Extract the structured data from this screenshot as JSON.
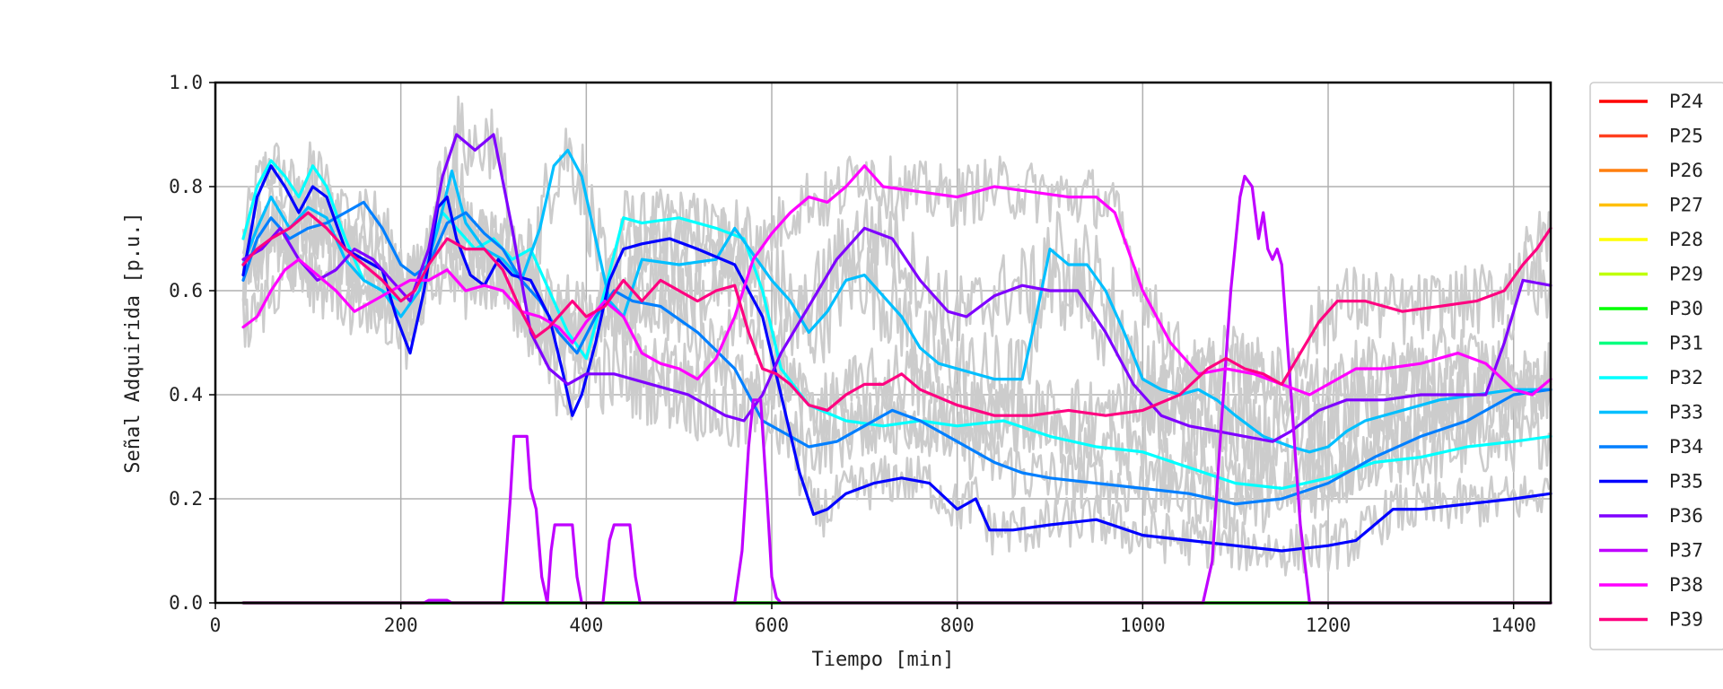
{
  "chart_data": {
    "type": "line",
    "title": "",
    "xlabel": "Tiempo [min]",
    "ylabel": "Señal Adquirida [p.u.]",
    "xlim": [
      0,
      1440
    ],
    "ylim": [
      0,
      1.0
    ],
    "xticks": [
      0,
      200,
      400,
      600,
      800,
      1000,
      1200,
      1400
    ],
    "yticks": [
      0.0,
      0.2,
      0.4,
      0.6,
      0.8,
      1.0
    ],
    "xtick_labels": [
      "0",
      "200",
      "400",
      "600",
      "800",
      "1000",
      "1200",
      "1400"
    ],
    "ytick_labels": [
      "0.0",
      "0.2",
      "0.4",
      "0.6",
      "0.8",
      "1.0"
    ],
    "grid": true,
    "legend_position": "outside-right",
    "raw_signal_color": "#cccccc",
    "series": [
      {
        "name": "P24",
        "color": "#ff0000",
        "x": [
          30,
          1440
        ],
        "y": [
          0,
          0
        ]
      },
      {
        "name": "P25",
        "color": "#ff3f1f",
        "x": [
          30,
          1440
        ],
        "y": [
          0,
          0
        ]
      },
      {
        "name": "P26",
        "color": "#ff7f0e",
        "x": [
          30,
          1440
        ],
        "y": [
          0,
          0
        ]
      },
      {
        "name": "P27",
        "color": "#ffbf00",
        "x": [
          30,
          1440
        ],
        "y": [
          0,
          0
        ]
      },
      {
        "name": "P28",
        "color": "#ffff00",
        "x": [
          30,
          1440
        ],
        "y": [
          0,
          0
        ]
      },
      {
        "name": "P29",
        "color": "#bfff00",
        "x": [
          30,
          1440
        ],
        "y": [
          0,
          0
        ]
      },
      {
        "name": "P30",
        "color": "#00ff00",
        "x": [
          30,
          1440
        ],
        "y": [
          0,
          0
        ]
      },
      {
        "name": "P31",
        "color": "#00ff7f",
        "x": [
          30,
          1440
        ],
        "y": [
          0,
          0
        ]
      },
      {
        "name": "P32",
        "color": "#00ffff",
        "x": [
          30,
          45,
          60,
          75,
          90,
          105,
          120,
          140,
          160,
          180,
          200,
          215,
          230,
          245,
          260,
          280,
          300,
          320,
          340,
          360,
          380,
          400,
          420,
          440,
          460,
          500,
          540,
          570,
          590,
          610,
          640,
          680,
          720,
          760,
          800,
          850,
          900,
          950,
          1000,
          1050,
          1100,
          1150,
          1200,
          1250,
          1300,
          1350,
          1400,
          1440
        ],
        "y": [
          0.7,
          0.8,
          0.85,
          0.82,
          0.78,
          0.84,
          0.8,
          0.7,
          0.62,
          0.6,
          0.58,
          0.6,
          0.68,
          0.75,
          0.72,
          0.68,
          0.7,
          0.66,
          0.68,
          0.6,
          0.52,
          0.47,
          0.6,
          0.74,
          0.73,
          0.74,
          0.72,
          0.7,
          0.6,
          0.45,
          0.38,
          0.35,
          0.34,
          0.35,
          0.34,
          0.35,
          0.32,
          0.3,
          0.29,
          0.26,
          0.23,
          0.22,
          0.24,
          0.27,
          0.28,
          0.3,
          0.31,
          0.32
        ]
      },
      {
        "name": "P33",
        "color": "#00bfff",
        "x": [
          30,
          45,
          60,
          80,
          100,
          120,
          140,
          160,
          180,
          200,
          220,
          240,
          255,
          270,
          290,
          310,
          330,
          350,
          365,
          380,
          395,
          410,
          425,
          440,
          460,
          500,
          540,
          560,
          580,
          600,
          620,
          640,
          660,
          680,
          700,
          720,
          740,
          760,
          780,
          800,
          840,
          870,
          885,
          900,
          920,
          940,
          960,
          980,
          1000,
          1020,
          1040,
          1060,
          1080,
          1100,
          1130,
          1160,
          1180,
          1200,
          1220,
          1240,
          1280,
          1320,
          1360,
          1400,
          1440
        ],
        "y": [
          0.65,
          0.72,
          0.78,
          0.72,
          0.76,
          0.74,
          0.66,
          0.62,
          0.6,
          0.55,
          0.6,
          0.72,
          0.83,
          0.73,
          0.68,
          0.66,
          0.62,
          0.72,
          0.84,
          0.87,
          0.82,
          0.7,
          0.58,
          0.55,
          0.66,
          0.65,
          0.66,
          0.72,
          0.67,
          0.62,
          0.58,
          0.52,
          0.56,
          0.62,
          0.63,
          0.59,
          0.55,
          0.49,
          0.46,
          0.45,
          0.43,
          0.43,
          0.55,
          0.68,
          0.65,
          0.65,
          0.6,
          0.52,
          0.43,
          0.41,
          0.4,
          0.41,
          0.39,
          0.36,
          0.32,
          0.3,
          0.29,
          0.3,
          0.33,
          0.35,
          0.37,
          0.39,
          0.4,
          0.41,
          0.41
        ]
      },
      {
        "name": "P34",
        "color": "#007fff",
        "x": [
          30,
          45,
          60,
          80,
          100,
          120,
          140,
          160,
          180,
          200,
          215,
          230,
          250,
          270,
          290,
          310,
          330,
          350,
          370,
          390,
          410,
          430,
          450,
          480,
          520,
          560,
          590,
          620,
          640,
          670,
          700,
          730,
          760,
          800,
          840,
          870,
          900,
          950,
          1000,
          1050,
          1100,
          1150,
          1200,
          1250,
          1300,
          1350,
          1400,
          1440
        ],
        "y": [
          0.62,
          0.7,
          0.74,
          0.7,
          0.72,
          0.73,
          0.75,
          0.77,
          0.72,
          0.65,
          0.63,
          0.65,
          0.73,
          0.75,
          0.71,
          0.68,
          0.62,
          0.58,
          0.52,
          0.48,
          0.55,
          0.6,
          0.58,
          0.57,
          0.52,
          0.45,
          0.35,
          0.32,
          0.3,
          0.31,
          0.34,
          0.37,
          0.35,
          0.31,
          0.27,
          0.25,
          0.24,
          0.23,
          0.22,
          0.21,
          0.19,
          0.2,
          0.23,
          0.28,
          0.32,
          0.35,
          0.4,
          0.41
        ]
      },
      {
        "name": "P35",
        "color": "#0000ff",
        "x": [
          30,
          45,
          60,
          75,
          90,
          105,
          120,
          140,
          160,
          180,
          195,
          210,
          225,
          240,
          250,
          260,
          275,
          290,
          305,
          320,
          340,
          360,
          375,
          385,
          395,
          410,
          425,
          440,
          460,
          490,
          520,
          560,
          590,
          610,
          630,
          645,
          660,
          680,
          710,
          740,
          770,
          800,
          820,
          835,
          860,
          900,
          950,
          1000,
          1050,
          1100,
          1150,
          1200,
          1230,
          1250,
          1270,
          1300,
          1350,
          1400,
          1440
        ],
        "y": [
          0.63,
          0.78,
          0.84,
          0.8,
          0.75,
          0.8,
          0.78,
          0.68,
          0.66,
          0.64,
          0.55,
          0.48,
          0.6,
          0.76,
          0.78,
          0.7,
          0.63,
          0.61,
          0.66,
          0.63,
          0.62,
          0.55,
          0.44,
          0.36,
          0.4,
          0.5,
          0.62,
          0.68,
          0.69,
          0.7,
          0.68,
          0.65,
          0.55,
          0.4,
          0.25,
          0.17,
          0.18,
          0.21,
          0.23,
          0.24,
          0.23,
          0.18,
          0.2,
          0.14,
          0.14,
          0.15,
          0.16,
          0.13,
          0.12,
          0.11,
          0.1,
          0.11,
          0.12,
          0.15,
          0.18,
          0.18,
          0.19,
          0.2,
          0.21
        ]
      },
      {
        "name": "P36",
        "color": "#7f00ff",
        "x": [
          30,
          50,
          70,
          90,
          110,
          130,
          150,
          170,
          190,
          210,
          230,
          245,
          260,
          280,
          300,
          320,
          340,
          360,
          380,
          400,
          430,
          470,
          510,
          550,
          570,
          590,
          610,
          640,
          670,
          700,
          730,
          760,
          790,
          810,
          840,
          870,
          900,
          930,
          960,
          990,
          1020,
          1050,
          1080,
          1110,
          1140,
          1160,
          1190,
          1220,
          1260,
          1300,
          1340,
          1370,
          1390,
          1410,
          1440
        ],
        "y": [
          0.66,
          0.68,
          0.72,
          0.66,
          0.62,
          0.64,
          0.68,
          0.66,
          0.62,
          0.58,
          0.68,
          0.82,
          0.9,
          0.87,
          0.9,
          0.72,
          0.52,
          0.45,
          0.42,
          0.44,
          0.44,
          0.42,
          0.4,
          0.36,
          0.35,
          0.4,
          0.48,
          0.57,
          0.66,
          0.72,
          0.7,
          0.62,
          0.56,
          0.55,
          0.59,
          0.61,
          0.6,
          0.6,
          0.52,
          0.42,
          0.36,
          0.34,
          0.33,
          0.32,
          0.31,
          0.33,
          0.37,
          0.39,
          0.39,
          0.4,
          0.4,
          0.4,
          0.5,
          0.62,
          0.61
        ]
      },
      {
        "name": "P37",
        "color": "#bf00ff",
        "x": [
          30,
          225,
          230,
          250,
          255,
          310,
          318,
          322,
          336,
          340,
          346,
          352,
          358,
          362,
          366,
          370,
          375,
          385,
          390,
          395,
          418,
          425,
          430,
          440,
          447,
          453,
          458,
          560,
          568,
          575,
          580,
          588,
          595,
          600,
          605,
          610,
          1065,
          1075,
          1085,
          1095,
          1105,
          1110,
          1118,
          1125,
          1130,
          1135,
          1140,
          1145,
          1150,
          1160,
          1170,
          1180,
          1440
        ],
        "y": [
          0,
          0,
          0.005,
          0.005,
          0,
          0,
          0.2,
          0.32,
          0.32,
          0.22,
          0.18,
          0.05,
          0,
          0.1,
          0.15,
          0.15,
          0.15,
          0.15,
          0.05,
          0,
          0,
          0.12,
          0.15,
          0.15,
          0.15,
          0.05,
          0,
          0,
          0.1,
          0.3,
          0.39,
          0.39,
          0.2,
          0.05,
          0.01,
          0,
          0,
          0.08,
          0.35,
          0.6,
          0.78,
          0.82,
          0.8,
          0.7,
          0.75,
          0.68,
          0.66,
          0.68,
          0.65,
          0.4,
          0.15,
          0,
          0
        ]
      },
      {
        "name": "P38",
        "color": "#ff00ff",
        "x": [
          30,
          45,
          60,
          75,
          90,
          110,
          130,
          150,
          170,
          190,
          210,
          230,
          250,
          270,
          290,
          310,
          330,
          350,
          370,
          385,
          400,
          420,
          440,
          460,
          480,
          500,
          520,
          540,
          560,
          580,
          600,
          620,
          640,
          660,
          680,
          700,
          720,
          760,
          800,
          840,
          880,
          920,
          950,
          970,
          1000,
          1030,
          1060,
          1090,
          1120,
          1150,
          1180,
          1200,
          1230,
          1260,
          1300,
          1340,
          1370,
          1400,
          1420,
          1440
        ],
        "y": [
          0.53,
          0.55,
          0.6,
          0.64,
          0.66,
          0.63,
          0.6,
          0.56,
          0.58,
          0.6,
          0.62,
          0.62,
          0.64,
          0.6,
          0.61,
          0.6,
          0.56,
          0.55,
          0.53,
          0.5,
          0.54,
          0.58,
          0.55,
          0.48,
          0.46,
          0.45,
          0.43,
          0.47,
          0.55,
          0.66,
          0.71,
          0.75,
          0.78,
          0.77,
          0.8,
          0.84,
          0.8,
          0.79,
          0.78,
          0.8,
          0.79,
          0.78,
          0.78,
          0.75,
          0.6,
          0.5,
          0.44,
          0.45,
          0.44,
          0.42,
          0.4,
          0.42,
          0.45,
          0.45,
          0.46,
          0.48,
          0.46,
          0.41,
          0.4,
          0.43
        ]
      },
      {
        "name": "P39",
        "color": "#ff0080",
        "x": [
          30,
          45,
          60,
          80,
          100,
          120,
          140,
          160,
          180,
          200,
          215,
          230,
          250,
          270,
          290,
          310,
          330,
          345,
          360,
          375,
          385,
          400,
          420,
          440,
          460,
          480,
          500,
          520,
          540,
          560,
          575,
          590,
          605,
          620,
          640,
          660,
          680,
          700,
          720,
          740,
          760,
          800,
          840,
          880,
          920,
          960,
          1000,
          1040,
          1070,
          1090,
          1110,
          1130,
          1150,
          1170,
          1190,
          1210,
          1240,
          1280,
          1320,
          1360,
          1390,
          1410,
          1425,
          1440
        ],
        "y": [
          0.65,
          0.68,
          0.7,
          0.72,
          0.75,
          0.72,
          0.68,
          0.65,
          0.62,
          0.58,
          0.6,
          0.65,
          0.7,
          0.68,
          0.68,
          0.64,
          0.56,
          0.51,
          0.53,
          0.56,
          0.58,
          0.55,
          0.57,
          0.62,
          0.58,
          0.62,
          0.6,
          0.58,
          0.6,
          0.61,
          0.52,
          0.45,
          0.44,
          0.42,
          0.38,
          0.37,
          0.4,
          0.42,
          0.42,
          0.44,
          0.41,
          0.38,
          0.36,
          0.36,
          0.37,
          0.36,
          0.37,
          0.4,
          0.45,
          0.47,
          0.45,
          0.44,
          0.42,
          0.48,
          0.54,
          0.58,
          0.58,
          0.56,
          0.57,
          0.58,
          0.6,
          0.65,
          0.68,
          0.72
        ]
      }
    ],
    "background_raw_traces": [
      {
        "name": "raw-P32",
        "base": "P32",
        "noise": 0.06
      },
      {
        "name": "raw-P33",
        "base": "P33",
        "noise": 0.09
      },
      {
        "name": "raw-P34",
        "base": "P34",
        "noise": 0.06
      },
      {
        "name": "raw-P35",
        "base": "P35",
        "noise": 0.05
      },
      {
        "name": "raw-P36",
        "base": "P36",
        "noise": 0.08
      },
      {
        "name": "raw-P38",
        "base": "P38",
        "noise": 0.06
      },
      {
        "name": "raw-P39",
        "base": "P39",
        "noise": 0.07
      }
    ]
  }
}
